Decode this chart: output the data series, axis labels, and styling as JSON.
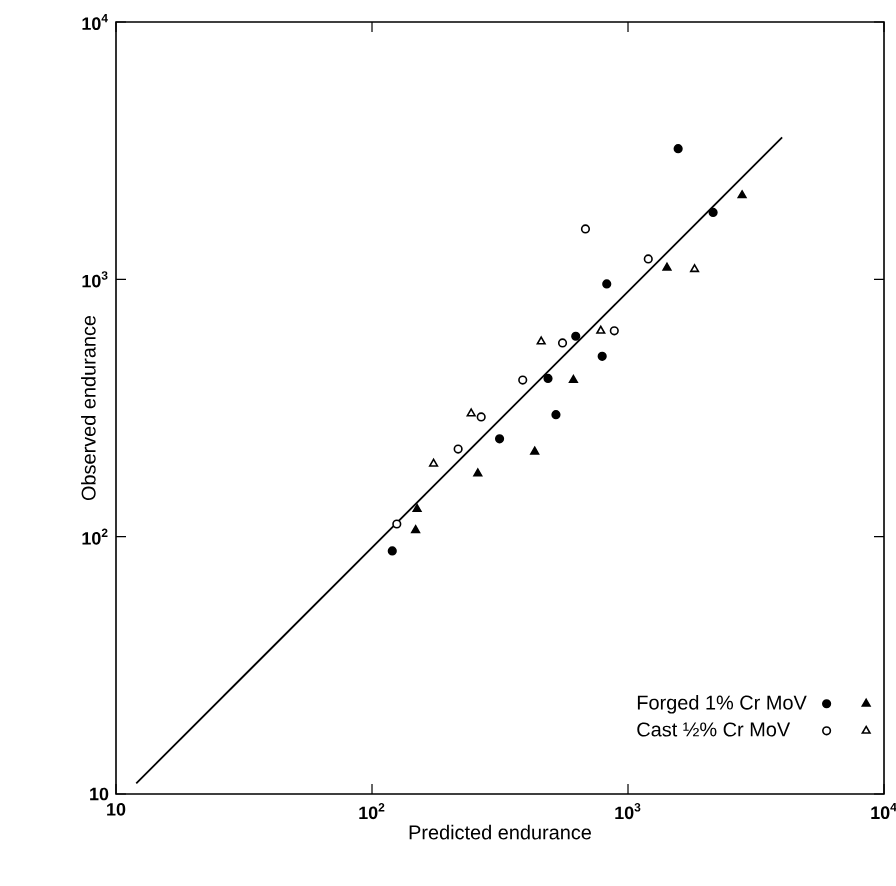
{
  "chart_data": {
    "type": "scatter",
    "xlabel": "Predicted  endurance",
    "ylabel": "Observed  endurance",
    "log": "xy",
    "grid": false,
    "legend": "bottom right",
    "xlim": [
      10,
      10000
    ],
    "ylim": [
      10,
      10000
    ],
    "xticks": [
      10,
      {
        "value": 100,
        "label": "10$^{2}$"
      },
      {
        "value": 1000,
        "label": "10$^{3}$"
      },
      {
        "value": 10000,
        "label": "10$^{4}$"
      }
    ],
    "yticks": [
      10,
      {
        "value": 100,
        "label": "10$^{2}$"
      },
      {
        "value": 1000,
        "label": "10$^{3}$"
      },
      {
        "value": 10000,
        "label": "10$^{4}$"
      }
    ],
    "series": [
      {
        "type": "line",
        "color": "#000000",
        "marker": "none",
        "x": [
          12,
          4000
        ],
        "values": [
          11,
          3560
        ]
      },
      {
        "name": "Forged 1% Cr MoV",
        "color": "#000000",
        "marker": "circle",
        "x": [
          120,
          315,
          1570,
          2150,
          826,
          625,
          793,
          487,
          523
        ],
        "values": [
          88,
          240,
          3220,
          1820,
          960,
          601,
          502,
          412,
          298
        ]
      },
      {
        "color": "#000000",
        "marker": "triangle",
        "x": [
          150,
          148,
          259,
          432,
          612,
          1420,
          2790
        ],
        "values": [
          128,
          106,
          176,
          214,
          406,
          1110,
          2120
        ]
      },
      {
        "name": "Cast ½% Cr MoV",
        "color": "#ffffff",
        "marker": "circle",
        "x": [
          125,
          217,
          267,
          388,
          555,
          682,
          1200,
          884
        ],
        "values": [
          112,
          219,
          292,
          406,
          566,
          1570,
          1200,
          631
        ]
      },
      {
        "color": "#ffffff",
        "marker": "triangle",
        "x": [
          174,
          244,
          458,
          783,
          1820
        ],
        "values": [
          192,
          301,
          573,
          631,
          1095
        ]
      }
    ]
  }
}
